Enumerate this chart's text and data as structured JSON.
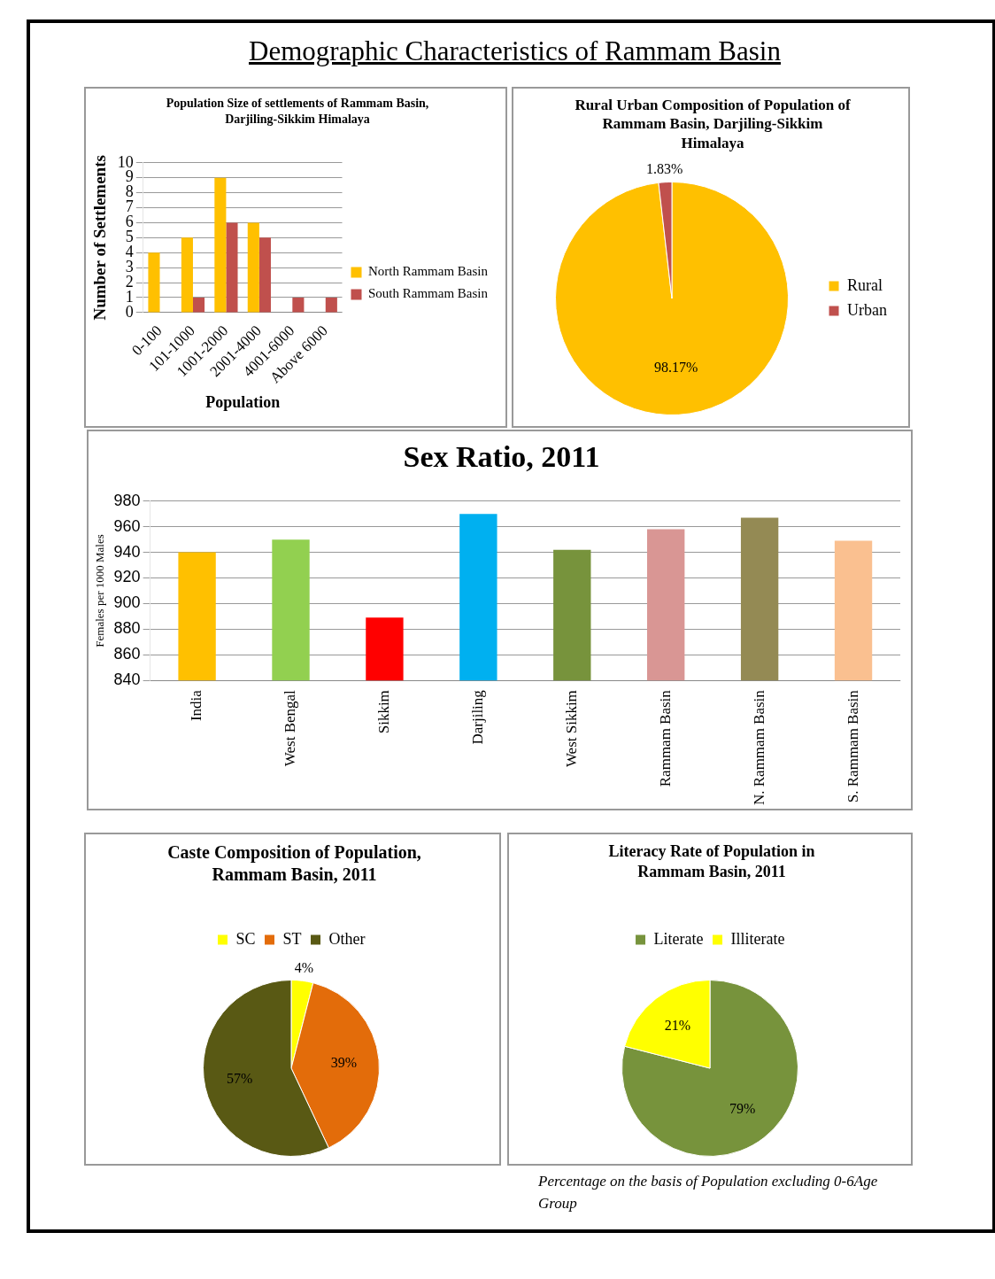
{
  "chart_data": [
    {
      "type": "bar",
      "title": "Population Size of settlements of Rammam Basin, Darjiling-Sikkim Himalaya",
      "xlabel": "Population",
      "ylabel": "Number of Settlements",
      "annotations": [
        "Demographic Characteristics of Rammam Basin"
      ],
      "categories": [
        "0-100",
        "101-1000",
        "1001-2000",
        "2001-4000",
        "4001-6000",
        "Above 6000"
      ],
      "series": [
        {
          "name": "North Rammam Basin",
          "color": "#ffc000",
          "values": [
            4,
            5,
            9,
            6,
            0,
            0
          ]
        },
        {
          "name": "South Rammam Basin",
          "color": "#c0504d",
          "values": [
            0,
            1,
            6,
            5,
            1,
            1
          ]
        }
      ],
      "ylim": [
        0,
        10
      ],
      "yticks": [
        0,
        1,
        2,
        3,
        4,
        5,
        6,
        7,
        8,
        9,
        10
      ],
      "grid": "y",
      "legend": "right"
    },
    {
      "type": "pie",
      "title": "Rural Urban Composition of Population of Rammam Basin, Darjiling-Sikkim Himalaya",
      "categories": [
        "Rural",
        "Urban"
      ],
      "values": [
        98.17,
        1.83
      ],
      "colors": [
        "#ffc000",
        "#c0504d"
      ],
      "value_labels": [
        "98.17%",
        "1.83%"
      ],
      "legend": "right"
    },
    {
      "type": "bar",
      "title": "Sex Ratio, 2011",
      "ylabel": "Females per 1000 Males",
      "categories": [
        "India",
        "West Bengal",
        "Sikkim",
        "Darjiling",
        "West Sikkim",
        "Rammam Basin",
        "N. Rammam Basin",
        "S. Rammam Basin"
      ],
      "values": [
        940,
        950,
        889,
        970,
        942,
        958,
        967,
        949
      ],
      "colors": [
        "#ffc000",
        "#92d050",
        "#ff0000",
        "#00b0f0",
        "#77933c",
        "#d99694",
        "#948a54",
        "#fac090"
      ],
      "ylim": [
        840,
        980
      ],
      "yticks": [
        840,
        860,
        880,
        900,
        920,
        940,
        960,
        980
      ],
      "grid": "y"
    },
    {
      "type": "pie",
      "title": "Caste Composition of Population, Rammam Basin, 2011",
      "categories": [
        "SC",
        "ST",
        "Other"
      ],
      "values": [
        4,
        39,
        57
      ],
      "colors": [
        "#ffff00",
        "#e36c0a",
        "#595914"
      ],
      "value_labels": [
        "4%",
        "39%",
        "57%"
      ],
      "legend": "top"
    },
    {
      "type": "pie",
      "title": "Literacy Rate of Population in Rammam Basin, 2011",
      "categories": [
        "Literate",
        "Illiterate"
      ],
      "values": [
        79,
        21
      ],
      "colors": [
        "#77933c",
        "#ffff00"
      ],
      "value_labels": [
        "79%",
        "21%"
      ],
      "legend": "top",
      "annotations": [
        "Percentage on the basis of Population excluding 0-6Age Group"
      ]
    }
  ]
}
